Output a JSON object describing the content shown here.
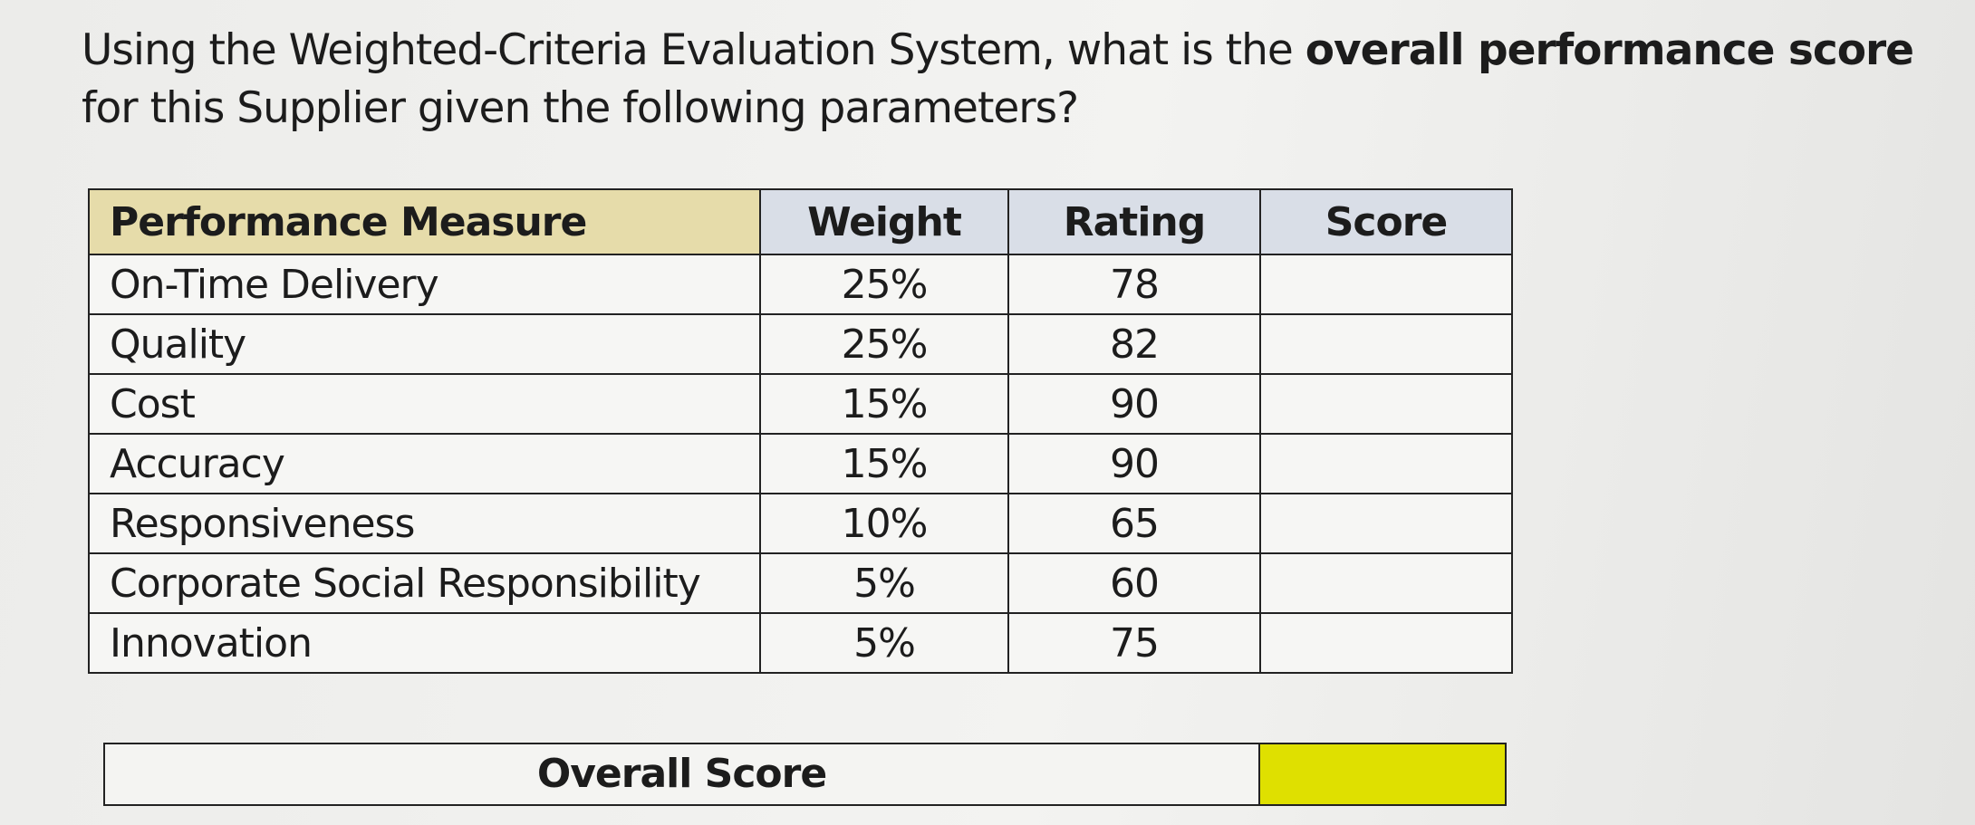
{
  "question": {
    "before": "Using the Weighted-Criteria Evaluation System, what is the ",
    "bold": "overall performance score",
    "after": " for this Supplier given the following parameters?"
  },
  "table": {
    "header": [
      "Performance Measure",
      "Weight",
      "Rating",
      "Score"
    ],
    "rows": [
      [
        "On-Time Delivery",
        "25%",
        78
      ],
      [
        "Quality",
        "25%",
        82
      ],
      [
        "Cost",
        "15%",
        90
      ],
      [
        "Accuracy",
        "15%",
        90
      ],
      [
        "Responsiveness",
        "10%",
        65
      ],
      [
        "Corporate Social Responsibility",
        "5%",
        60
      ],
      [
        "Innovation",
        "5%",
        75
      ]
    ]
  },
  "overall": {
    "label": "Overall Score"
  }
}
